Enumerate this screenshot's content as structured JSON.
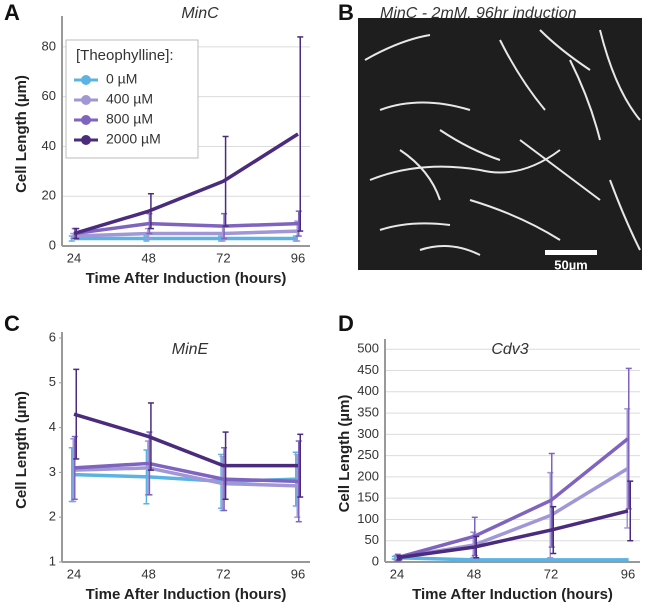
{
  "chart_data": [
    {
      "type": "line",
      "panel_label": "A",
      "title": "MinC",
      "ylabel": "Cell Length (µm)",
      "xlabel": "Time After Induction (hours)",
      "categories": [
        "24",
        "48",
        "72",
        "96"
      ],
      "ylim": [
        0,
        90
      ],
      "yticks": [
        0,
        20,
        40,
        60,
        80
      ],
      "grid": true,
      "legend": true,
      "legend_title": "[Theophylline]:",
      "legend_corner": "upper-left",
      "series": [
        {
          "name": "0 µM",
          "color": "#5bb3e3",
          "values": [
            3,
            3,
            3,
            3
          ],
          "errors": [
            1,
            1,
            1,
            1
          ]
        },
        {
          "name": "400 µM",
          "color": "#a197d6",
          "values": [
            4,
            5,
            5,
            6
          ],
          "errors": [
            1,
            2,
            3,
            4
          ]
        },
        {
          "name": "800 µM",
          "color": "#7f63bf",
          "values": [
            5,
            9,
            8,
            9
          ],
          "errors": [
            2,
            4,
            5,
            5
          ]
        },
        {
          "name": "2000 µM",
          "color": "#4a2b7d",
          "values": [
            5,
            14,
            26,
            45
          ],
          "errors": [
            2,
            7,
            18,
            39
          ]
        }
      ]
    },
    {
      "type": "line",
      "panel_label": "C",
      "title": "MinE",
      "ylabel": "Cell Length (µm)",
      "xlabel": "Time After Induction (hours)",
      "categories": [
        "24",
        "48",
        "72",
        "96"
      ],
      "ylim": [
        1,
        6
      ],
      "yticks": [
        1,
        2,
        3,
        4,
        5,
        6
      ],
      "grid": false,
      "legend": false,
      "series": [
        {
          "color": "#5bb3e3",
          "values": [
            2.95,
            2.9,
            2.8,
            2.85
          ],
          "errors": [
            0.6,
            0.6,
            0.6,
            0.6
          ]
        },
        {
          "color": "#a197d6",
          "values": [
            3.05,
            3.1,
            2.75,
            2.7
          ],
          "errors": [
            0.7,
            0.6,
            0.6,
            0.7
          ]
        },
        {
          "color": "#7f63bf",
          "values": [
            3.1,
            3.2,
            2.85,
            2.8
          ],
          "errors": [
            0.7,
            0.7,
            0.7,
            0.9
          ]
        },
        {
          "color": "#4a2b7d",
          "values": [
            4.3,
            3.8,
            3.15,
            3.15
          ],
          "errors": [
            1.0,
            0.75,
            0.75,
            0.7
          ]
        }
      ]
    },
    {
      "type": "line",
      "panel_label": "D",
      "title": "Cdv3",
      "ylabel": "Cell Length (µm)",
      "xlabel": "Time After Induction (hours)",
      "categories": [
        "24",
        "48",
        "72",
        "96"
      ],
      "ylim": [
        0,
        510
      ],
      "yticks": [
        0,
        50,
        100,
        150,
        200,
        250,
        300,
        350,
        400,
        450,
        500
      ],
      "grid": true,
      "legend": false,
      "series": [
        {
          "color": "#5bb3e3",
          "values": [
            10,
            5,
            5,
            5
          ],
          "errors": [
            3,
            2,
            2,
            2
          ]
        },
        {
          "color": "#a197d6",
          "values": [
            10,
            40,
            110,
            220
          ],
          "errors": [
            5,
            30,
            100,
            140
          ]
        },
        {
          "color": "#7f63bf",
          "values": [
            10,
            60,
            145,
            290
          ],
          "errors": [
            8,
            45,
            110,
            165
          ]
        },
        {
          "color": "#4a2b7d",
          "values": [
            10,
            35,
            75,
            120
          ],
          "errors": [
            5,
            25,
            55,
            70
          ]
        }
      ]
    }
  ],
  "image_panel": {
    "panel_label": "B",
    "caption": "MinC - 2mM, 96hr induction",
    "scale_bar": "50µm"
  }
}
